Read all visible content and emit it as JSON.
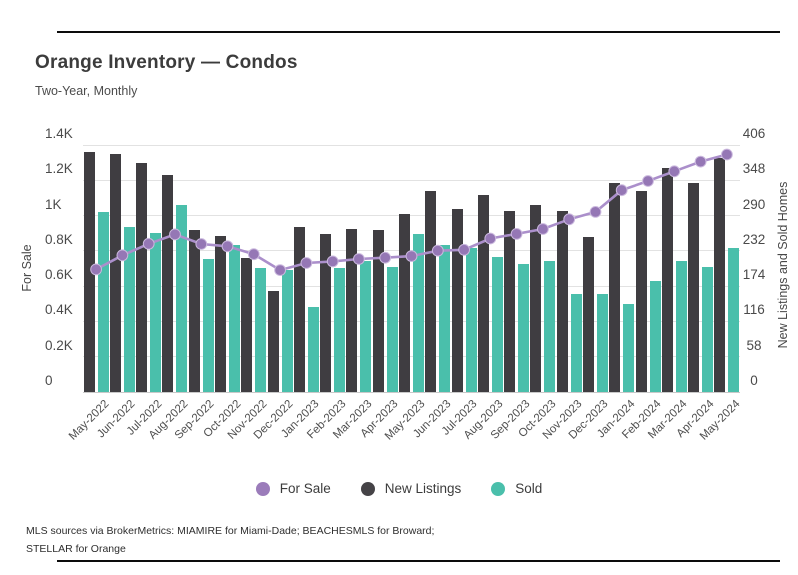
{
  "header": {
    "title": "Orange Inventory — Condos",
    "subtitle": "Two-Year, Monthly"
  },
  "footer": {
    "line1": "MLS sources via BrokerMetrics: MIAMIRE for Miami-Dade; BEACHESMLS for Broward;",
    "line2": "STELLAR for Orange"
  },
  "colors": {
    "for_sale_point": "#9577b5",
    "for_sale_line": "#ab8fcb",
    "new_listings_bar": "#3f3d41",
    "sold_bar": "#4abfab",
    "gridline": "#e2e2e2",
    "text": "#3d3d3d"
  },
  "legend": {
    "items": [
      {
        "label": "For Sale",
        "color": "#9b7cba"
      },
      {
        "label": "New Listings",
        "color": "#454347"
      },
      {
        "label": "Sold",
        "color": "#4abfab"
      }
    ]
  },
  "chart_data": {
    "type": "bar",
    "title": "Orange Inventory — Condos",
    "subtitle": "Two-Year, Monthly",
    "grid": true,
    "legend_position": "bottom",
    "categories": [
      "May-2022",
      "Jun-2022",
      "Jul-2022",
      "Aug-2022",
      "Sep-2022",
      "Oct-2022",
      "Nov-2022",
      "Dec-2022",
      "Jan-2023",
      "Feb-2023",
      "Mar-2023",
      "Apr-2023",
      "May-2023",
      "Jun-2023",
      "Jul-2023",
      "Aug-2023",
      "Sep-2023",
      "Oct-2023",
      "Nov-2023",
      "Dec-2023",
      "Jan-2024",
      "Feb-2024",
      "Mar-2024",
      "Apr-2024",
      "May-2024"
    ],
    "left_axis": {
      "label": "For Sale",
      "min": 0,
      "max": 1400,
      "ticks": [
        "0",
        "0.2K",
        "0.4K",
        "0.6K",
        "0.8K",
        "1K",
        "1.2K",
        "1.4K"
      ]
    },
    "right_axis": {
      "label": "New Listings and Sold Homes",
      "min": 0,
      "max": 406,
      "ticks": [
        "0",
        "58",
        "116",
        "174",
        "232",
        "290",
        "348",
        "406"
      ]
    },
    "series": [
      {
        "name": "For Sale",
        "type": "line",
        "axis": "left",
        "color": "#9577b5",
        "line_color": "#ab8fcb",
        "values": [
          695,
          775,
          840,
          893,
          839,
          826,
          781,
          691,
          731,
          740,
          754,
          761,
          770,
          801,
          806,
          870,
          896,
          924,
          979,
          1021,
          1144,
          1196,
          1251,
          1306,
          1346
        ]
      },
      {
        "name": "New Listings",
        "type": "bar",
        "axis": "right",
        "color": "#3f3d41",
        "values": [
          395,
          392,
          376,
          356,
          266,
          257,
          221,
          166,
          272,
          259,
          268,
          266,
          293,
          330,
          300,
          323,
          298,
          308,
          298,
          255,
          344,
          330,
          368,
          343,
          385
        ]
      },
      {
        "name": "Sold",
        "type": "bar",
        "axis": "right",
        "color": "#4abfab",
        "values": [
          296,
          272,
          261,
          307,
          219,
          241,
          204,
          201,
          139,
          204,
          216,
          205,
          259,
          242,
          237,
          222,
          211,
          215,
          161,
          161,
          144,
          182,
          215,
          205,
          236
        ]
      }
    ]
  }
}
